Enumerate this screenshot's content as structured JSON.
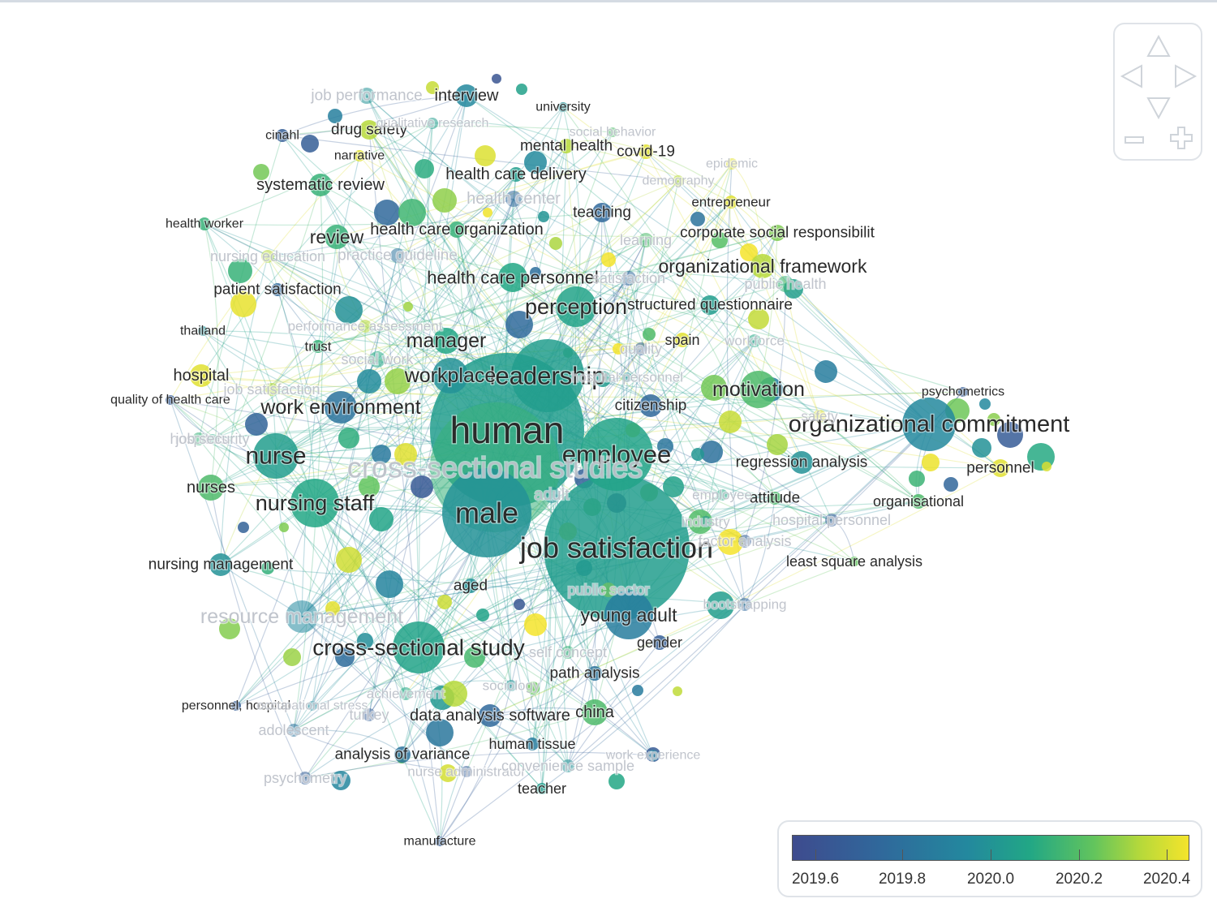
{
  "legend": {
    "ticks": [
      "2019.6",
      "2019.8",
      "2020.0",
      "2020.2",
      "2020.4"
    ],
    "colors": [
      "#3e4b8e",
      "#30689b",
      "#23889e",
      "#22a785",
      "#62c45d",
      "#b7d93a",
      "#f4e42b"
    ]
  },
  "navigation": {
    "icons": [
      "arrow-up-icon",
      "arrow-left-icon",
      "arrow-right-icon",
      "arrow-down-icon",
      "zoom-out-icon",
      "zoom-in-icon"
    ]
  },
  "keywords": [
    {
      "text": "human",
      "prominence": "xl",
      "year": 2019.95
    },
    {
      "text": "job satisfaction",
      "prominence": "xl",
      "year": 2019.95
    },
    {
      "text": "male",
      "prominence": "xl",
      "year": 2019.9
    },
    {
      "text": "employee",
      "prominence": "l",
      "year": 2019.98
    },
    {
      "text": "leadership",
      "prominence": "l",
      "year": 2019.95
    },
    {
      "text": "organizational commitment",
      "prominence": "l",
      "year": 2019.85
    },
    {
      "text": "nurse",
      "prominence": "l",
      "year": 2019.95
    },
    {
      "text": "nursing staff",
      "prominence": "l",
      "year": 2020.0
    },
    {
      "text": "cross-sectional study",
      "prominence": "l",
      "year": 2019.98
    },
    {
      "text": "perception",
      "prominence": "l",
      "year": 2019.98
    },
    {
      "text": "manager",
      "prominence": "m",
      "year": 2020.0
    },
    {
      "text": "workplace",
      "prominence": "m",
      "year": 2019.9
    },
    {
      "text": "motivation",
      "prominence": "m",
      "year": 2020.1
    },
    {
      "text": "work environment",
      "prominence": "m",
      "year": 2019.75
    },
    {
      "text": "young adult",
      "prominence": "m",
      "year": 2019.8
    },
    {
      "text": "review",
      "prominence": "m",
      "year": 2020.05
    },
    {
      "text": "organizational framework",
      "prominence": "m",
      "year": 2020.3
    },
    {
      "text": "health care personnel",
      "prominence": "m",
      "year": 2020.0
    },
    {
      "text": "health care organization",
      "prominence": "s",
      "year": 2020.05
    },
    {
      "text": "health care delivery",
      "prominence": "s",
      "year": 2019.95
    },
    {
      "text": "systematic review",
      "prominence": "s",
      "year": 2020.05
    },
    {
      "text": "interview",
      "prominence": "s",
      "year": 2019.85
    },
    {
      "text": "drug safety",
      "prominence": "s",
      "year": 2020.3
    },
    {
      "text": "mental health",
      "prominence": "s",
      "year": 2020.3
    },
    {
      "text": "covid-19",
      "prominence": "s",
      "year": 2020.4
    },
    {
      "text": "teaching",
      "prominence": "s",
      "year": 2019.7
    },
    {
      "text": "corporate social responsibilit",
      "prominence": "s",
      "year": 2020.2
    },
    {
      "text": "patient satisfaction",
      "prominence": "s",
      "year": 2019.7
    },
    {
      "text": "hospital",
      "prominence": "s",
      "year": 2020.4
    },
    {
      "text": "nurses",
      "prominence": "s",
      "year": 2020.1
    },
    {
      "text": "nursing management",
      "prominence": "s",
      "year": 2019.9
    },
    {
      "text": "regression analysis",
      "prominence": "s",
      "year": 2019.9
    },
    {
      "text": "personnel",
      "prominence": "s",
      "year": 2020.4
    },
    {
      "text": "organisational",
      "prominence": "s",
      "year": 2020.1
    },
    {
      "text": "attitude",
      "prominence": "s",
      "year": 2020.1
    },
    {
      "text": "least square analysis",
      "prominence": "s",
      "year": 2020.15
    },
    {
      "text": "citizenship",
      "prominence": "s",
      "year": 2019.7
    },
    {
      "text": "aged",
      "prominence": "s",
      "year": 2019.9
    },
    {
      "text": "gender",
      "prominence": "s",
      "year": 2019.65
    },
    {
      "text": "path analysis",
      "prominence": "s",
      "year": 2019.75
    },
    {
      "text": "china",
      "prominence": "s",
      "year": 2020.1
    },
    {
      "text": "data analysis software",
      "prominence": "s",
      "year": 2019.7
    },
    {
      "text": "analysis of variance",
      "prominence": "s",
      "year": 2019.75
    },
    {
      "text": "human tissue",
      "prominence": "s",
      "year": 2019.8
    },
    {
      "text": "teacher",
      "prominence": "s",
      "year": 2019.95
    },
    {
      "text": "spain",
      "prominence": "s",
      "year": 2020.4
    },
    {
      "text": "trust",
      "prominence": "s",
      "year": 2020.05
    },
    {
      "text": "entrepreneur",
      "prominence": "s",
      "year": 2020.4
    },
    {
      "text": "cinahl",
      "prominence": "s",
      "year": 2019.65
    },
    {
      "text": "narrative",
      "prominence": "s",
      "year": 2020.4
    },
    {
      "text": "university",
      "prominence": "s",
      "year": 2019.9
    },
    {
      "text": "thailand",
      "prominence": "s",
      "year": 2019.9
    },
    {
      "text": "quality of health care",
      "prominence": "s",
      "year": 2019.65
    },
    {
      "text": "personnel, hospital",
      "prominence": "s",
      "year": 2019.65
    },
    {
      "text": "psychometrics",
      "prominence": "s",
      "year": 2019.65
    },
    {
      "text": "manufacture",
      "prominence": "s",
      "year": 2019.65
    },
    {
      "text": "structured questionnaire",
      "prominence": "s",
      "year": 2019.95
    },
    {
      "text": "resource management",
      "prominence": "s",
      "year": 2019.85
    },
    {
      "text": "cross-sectional studies",
      "prominence": "m",
      "year": 2020.05
    },
    {
      "text": "adult",
      "prominence": "l",
      "year": 2019.9
    },
    {
      "text": "job performance",
      "prominence": "s",
      "year": 2019.9
    },
    {
      "text": "qualitative research",
      "prominence": "s",
      "year": 2019.95
    },
    {
      "text": "health center",
      "prominence": "s",
      "year": 2019.7
    },
    {
      "text": "learning",
      "prominence": "s",
      "year": 2020.1
    },
    {
      "text": "health worker",
      "prominence": "s",
      "year": 2020.05
    },
    {
      "text": "nursing education",
      "prominence": "s",
      "year": 2020.3
    },
    {
      "text": "practice guideline",
      "prominence": "s",
      "year": 2019.75
    },
    {
      "text": "satisfaction",
      "prominence": "s",
      "year": 2019.7
    },
    {
      "text": "public health",
      "prominence": "s",
      "year": 2020.05
    },
    {
      "text": "performance assessment",
      "prominence": "s",
      "year": 2020.3
    },
    {
      "text": "social work",
      "prominence": "s",
      "year": 2020.0
    },
    {
      "text": "workforce",
      "prominence": "s",
      "year": 2020.0
    },
    {
      "text": "job satisfaction",
      "prominence": "s",
      "year": 2020.3
    },
    {
      "text": "hospitals",
      "prominence": "s",
      "year": 2020.05
    },
    {
      "text": "hospital personnel",
      "prominence": "s",
      "year": 2019.65
    },
    {
      "text": "factor analysis",
      "prominence": "s",
      "year": 2019.65
    },
    {
      "text": "public sector",
      "prominence": "s",
      "year": 2020.2
    },
    {
      "text": "bootstrapping",
      "prominence": "s",
      "year": 2019.7
    },
    {
      "text": "occupational stress",
      "prominence": "s",
      "year": 2019.85
    },
    {
      "text": "turkey",
      "prominence": "s",
      "year": 2019.65
    },
    {
      "text": "adolescent",
      "prominence": "s",
      "year": 2019.75
    },
    {
      "text": "psychometry",
      "prominence": "s",
      "year": 2019.65
    },
    {
      "text": "nurse administrator",
      "prominence": "s",
      "year": 2019.65
    },
    {
      "text": "convenience sample",
      "prominence": "s",
      "year": 2019.9
    },
    {
      "text": "work experience",
      "prominence": "s",
      "year": 2019.85
    },
    {
      "text": "achievement",
      "prominence": "s",
      "year": 2020.0
    },
    {
      "text": "sociology",
      "prominence": "s",
      "year": 2019.9
    },
    {
      "text": "self concept",
      "prominence": "s",
      "year": 2020.05
    },
    {
      "text": "demography",
      "prominence": "s",
      "year": 2020.3
    },
    {
      "text": "epidemic",
      "prominence": "s",
      "year": 2020.4
    },
    {
      "text": "social behavior",
      "prominence": "s",
      "year": 2020.1
    },
    {
      "text": "safety",
      "prominence": "s",
      "year": 2020.4
    },
    {
      "text": "employee",
      "prominence": "s",
      "year": 2020.0
    },
    {
      "text": "industry",
      "prominence": "s",
      "year": 2019.9
    },
    {
      "text": "quality",
      "prominence": "s",
      "year": 2019.65
    },
    {
      "text": "job security",
      "prominence": "s",
      "year": 2020.0
    },
    {
      "text": "hospital personnel",
      "prominence": "s",
      "year": 2019.9
    },
    {
      "text": "leadership",
      "prominence": "s",
      "year": 2020.35
    }
  ]
}
